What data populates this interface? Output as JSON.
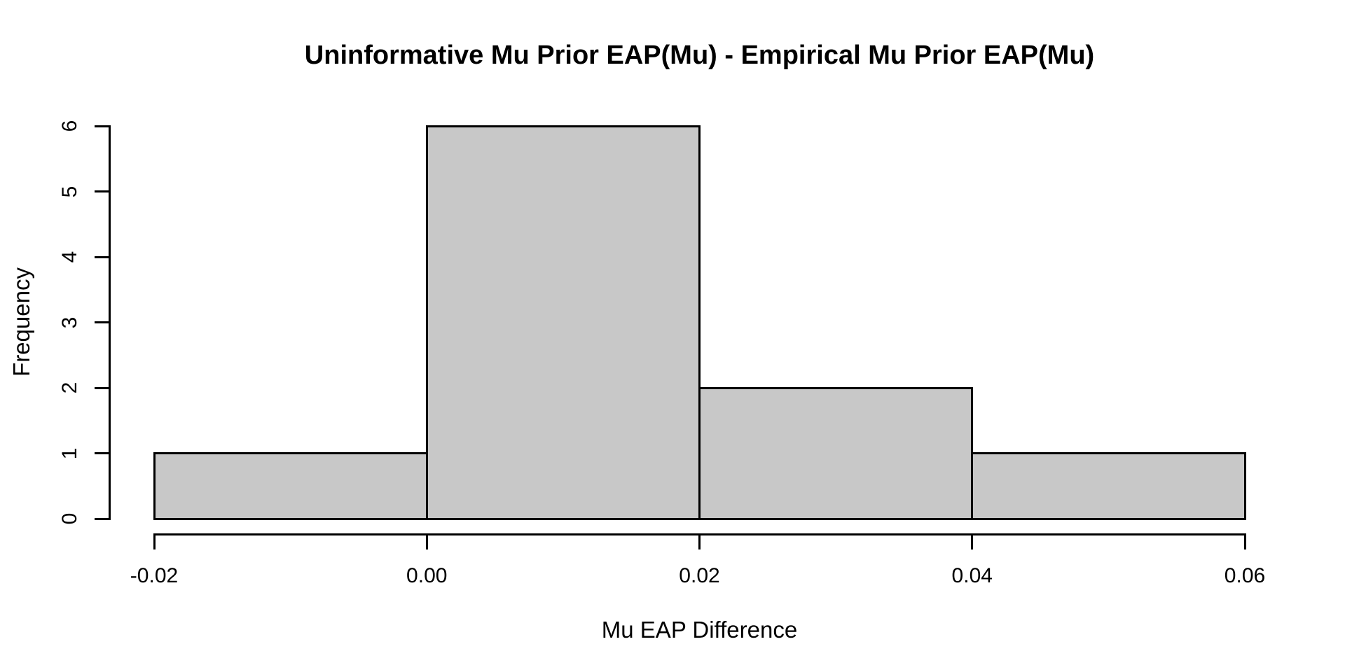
{
  "chart_data": {
    "type": "bar",
    "subtype": "histogram",
    "title": "Uninformative Mu Prior EAP(Mu) - Empirical Mu Prior EAP(Mu)",
    "xlabel": "Mu EAP Difference",
    "ylabel": "Frequency",
    "breaks": [
      -0.02,
      0.0,
      0.02,
      0.04,
      0.06
    ],
    "counts": [
      1,
      6,
      2,
      1
    ],
    "bins": [
      {
        "range": "[-0.02, 0.00]",
        "frequency": 1
      },
      {
        "range": "[0.00, 0.02]",
        "frequency": 6
      },
      {
        "range": "[0.02, 0.04]",
        "frequency": 2
      },
      {
        "range": "[0.04, 0.06]",
        "frequency": 1
      }
    ],
    "xlim": [
      -0.02,
      0.06
    ],
    "ylim": [
      0,
      6
    ],
    "x_ticks": [
      -0.02,
      0.0,
      0.02,
      0.04,
      0.06
    ],
    "x_tick_labels": [
      "-0.02",
      "0.00",
      "0.02",
      "0.04",
      "0.06"
    ],
    "y_ticks": [
      0,
      1,
      2,
      3,
      4,
      5,
      6
    ],
    "y_tick_labels": [
      "0",
      "1",
      "2",
      "3",
      "4",
      "5",
      "6"
    ],
    "grid": false,
    "legend": null,
    "colors": {
      "bar_fill": "#C8C8C8",
      "bar_stroke": "#000000",
      "axis": "#000000",
      "text": "#000000",
      "background": "#FFFFFF"
    }
  }
}
